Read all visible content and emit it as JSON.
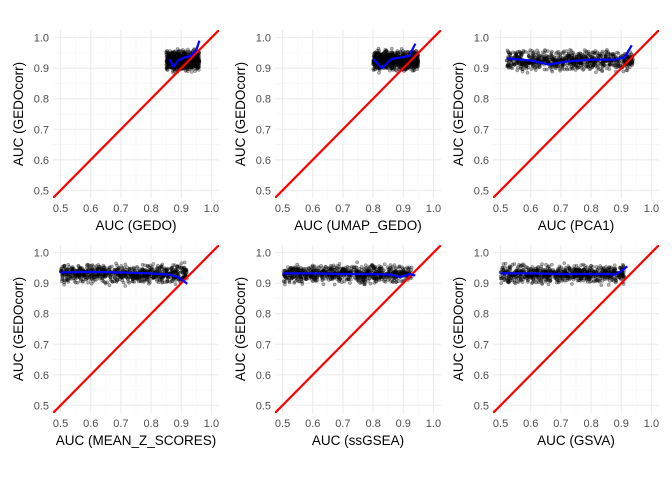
{
  "colors": {
    "points": "#000000",
    "smooth_line": "#0000ff",
    "identity_line": "#ff0000",
    "grid": "#ebebeb",
    "tick_text": "#4d4d4d"
  },
  "chart_data": [
    {
      "type": "scatter",
      "title": "",
      "xlabel": "AUC (GEDO)",
      "ylabel": "AUC (GEDOcorr)",
      "xlim": [
        0.475,
        1.025
      ],
      "ylim": [
        0.475,
        1.025
      ],
      "x_ticks": [
        "0.5",
        "0.6",
        "0.7",
        "0.8",
        "0.9",
        "1.0"
      ],
      "y_ticks": [
        "0.5",
        "0.6",
        "0.7",
        "0.8",
        "0.9",
        "1.0"
      ],
      "point_cloud": {
        "x_range": [
          0.85,
          0.96
        ],
        "y_range": [
          0.87,
          0.97
        ],
        "center_y": 0.925
      },
      "smooth": [
        [
          0.86,
          0.93
        ],
        [
          0.875,
          0.905
        ],
        [
          0.89,
          0.925
        ],
        [
          0.91,
          0.935
        ],
        [
          0.93,
          0.94
        ],
        [
          0.95,
          0.96
        ],
        [
          0.96,
          0.99
        ]
      ],
      "reference_line": "y = x"
    },
    {
      "type": "scatter",
      "title": "",
      "xlabel": "AUC (UMAP_GEDO)",
      "ylabel": "AUC (GEDOcorr)",
      "xlim": [
        0.475,
        1.025
      ],
      "ylim": [
        0.475,
        1.025
      ],
      "x_ticks": [
        "0.5",
        "0.6",
        "0.7",
        "0.8",
        "0.9",
        "1.0"
      ],
      "y_ticks": [
        "0.5",
        "0.6",
        "0.7",
        "0.8",
        "0.9",
        "1.0"
      ],
      "point_cloud": {
        "x_range": [
          0.8,
          0.95
        ],
        "y_range": [
          0.87,
          0.97
        ],
        "center_y": 0.925
      },
      "smooth": [
        [
          0.8,
          0.93
        ],
        [
          0.83,
          0.9
        ],
        [
          0.86,
          0.93
        ],
        [
          0.89,
          0.935
        ],
        [
          0.92,
          0.94
        ],
        [
          0.94,
          0.98
        ]
      ],
      "reference_line": "y = x"
    },
    {
      "type": "scatter",
      "title": "",
      "xlabel": "AUC (PCA1)",
      "ylabel": "AUC (GEDOcorr)",
      "xlim": [
        0.475,
        1.025
      ],
      "ylim": [
        0.475,
        1.025
      ],
      "x_ticks": [
        "0.5",
        "0.6",
        "0.7",
        "0.8",
        "0.9",
        "1.0"
      ],
      "y_ticks": [
        "0.5",
        "0.6",
        "0.7",
        "0.8",
        "0.9",
        "1.0"
      ],
      "point_cloud": {
        "x_range": [
          0.52,
          0.94
        ],
        "y_range": [
          0.87,
          0.97
        ],
        "center_y": 0.925
      },
      "smooth": [
        [
          0.52,
          0.932
        ],
        [
          0.6,
          0.925
        ],
        [
          0.66,
          0.912
        ],
        [
          0.72,
          0.922
        ],
        [
          0.8,
          0.928
        ],
        [
          0.88,
          0.928
        ],
        [
          0.91,
          0.935
        ],
        [
          0.935,
          0.975
        ]
      ],
      "reference_line": "y = x"
    },
    {
      "type": "scatter",
      "title": "",
      "xlabel": "AUC (MEAN_Z_SCORES)",
      "ylabel": "AUC (GEDOcorr)",
      "xlim": [
        0.475,
        1.025
      ],
      "ylim": [
        0.475,
        1.025
      ],
      "x_ticks": [
        "0.5",
        "0.6",
        "0.7",
        "0.8",
        "0.9",
        "1.0"
      ],
      "y_ticks": [
        "0.5",
        "0.6",
        "0.7",
        "0.8",
        "0.9",
        "1.0"
      ],
      "point_cloud": {
        "x_range": [
          0.5,
          0.92
        ],
        "y_range": [
          0.88,
          0.97
        ],
        "center_y": 0.93
      },
      "smooth": [
        [
          0.5,
          0.935
        ],
        [
          0.6,
          0.937
        ],
        [
          0.7,
          0.935
        ],
        [
          0.8,
          0.932
        ],
        [
          0.86,
          0.928
        ],
        [
          0.89,
          0.92
        ],
        [
          0.92,
          0.898
        ]
      ],
      "reference_line": "y = x"
    },
    {
      "type": "scatter",
      "title": "",
      "xlabel": "AUC (ssGSEA)",
      "ylabel": "AUC (GEDOcorr)",
      "xlim": [
        0.475,
        1.025
      ],
      "ylim": [
        0.475,
        1.025
      ],
      "x_ticks": [
        "0.5",
        "0.6",
        "0.7",
        "0.8",
        "0.9",
        "1.0"
      ],
      "y_ticks": [
        "0.5",
        "0.6",
        "0.7",
        "0.8",
        "0.9",
        "1.0"
      ],
      "point_cloud": {
        "x_range": [
          0.5,
          0.93
        ],
        "y_range": [
          0.88,
          0.97
        ],
        "center_y": 0.93
      },
      "smooth": [
        [
          0.5,
          0.932
        ],
        [
          0.6,
          0.932
        ],
        [
          0.7,
          0.93
        ],
        [
          0.8,
          0.93
        ],
        [
          0.86,
          0.928
        ],
        [
          0.89,
          0.92
        ],
        [
          0.92,
          0.93
        ],
        [
          0.94,
          0.925
        ]
      ],
      "reference_line": "y = x"
    },
    {
      "type": "scatter",
      "title": "",
      "xlabel": "AUC (GSVA)",
      "ylabel": "AUC (GEDOcorr)",
      "xlim": [
        0.475,
        1.025
      ],
      "ylim": [
        0.475,
        1.025
      ],
      "x_ticks": [
        "0.5",
        "0.6",
        "0.7",
        "0.8",
        "0.9",
        "1.0"
      ],
      "y_ticks": [
        "0.5",
        "0.6",
        "0.7",
        "0.8",
        "0.9",
        "1.0"
      ],
      "point_cloud": {
        "x_range": [
          0.5,
          0.91
        ],
        "y_range": [
          0.88,
          0.97
        ],
        "center_y": 0.93
      },
      "smooth": [
        [
          0.5,
          0.932
        ],
        [
          0.6,
          0.932
        ],
        [
          0.7,
          0.93
        ],
        [
          0.8,
          0.93
        ],
        [
          0.86,
          0.93
        ],
        [
          0.88,
          0.928
        ],
        [
          0.9,
          0.94
        ],
        [
          0.92,
          0.955
        ]
      ],
      "reference_line": "y = x"
    }
  ]
}
